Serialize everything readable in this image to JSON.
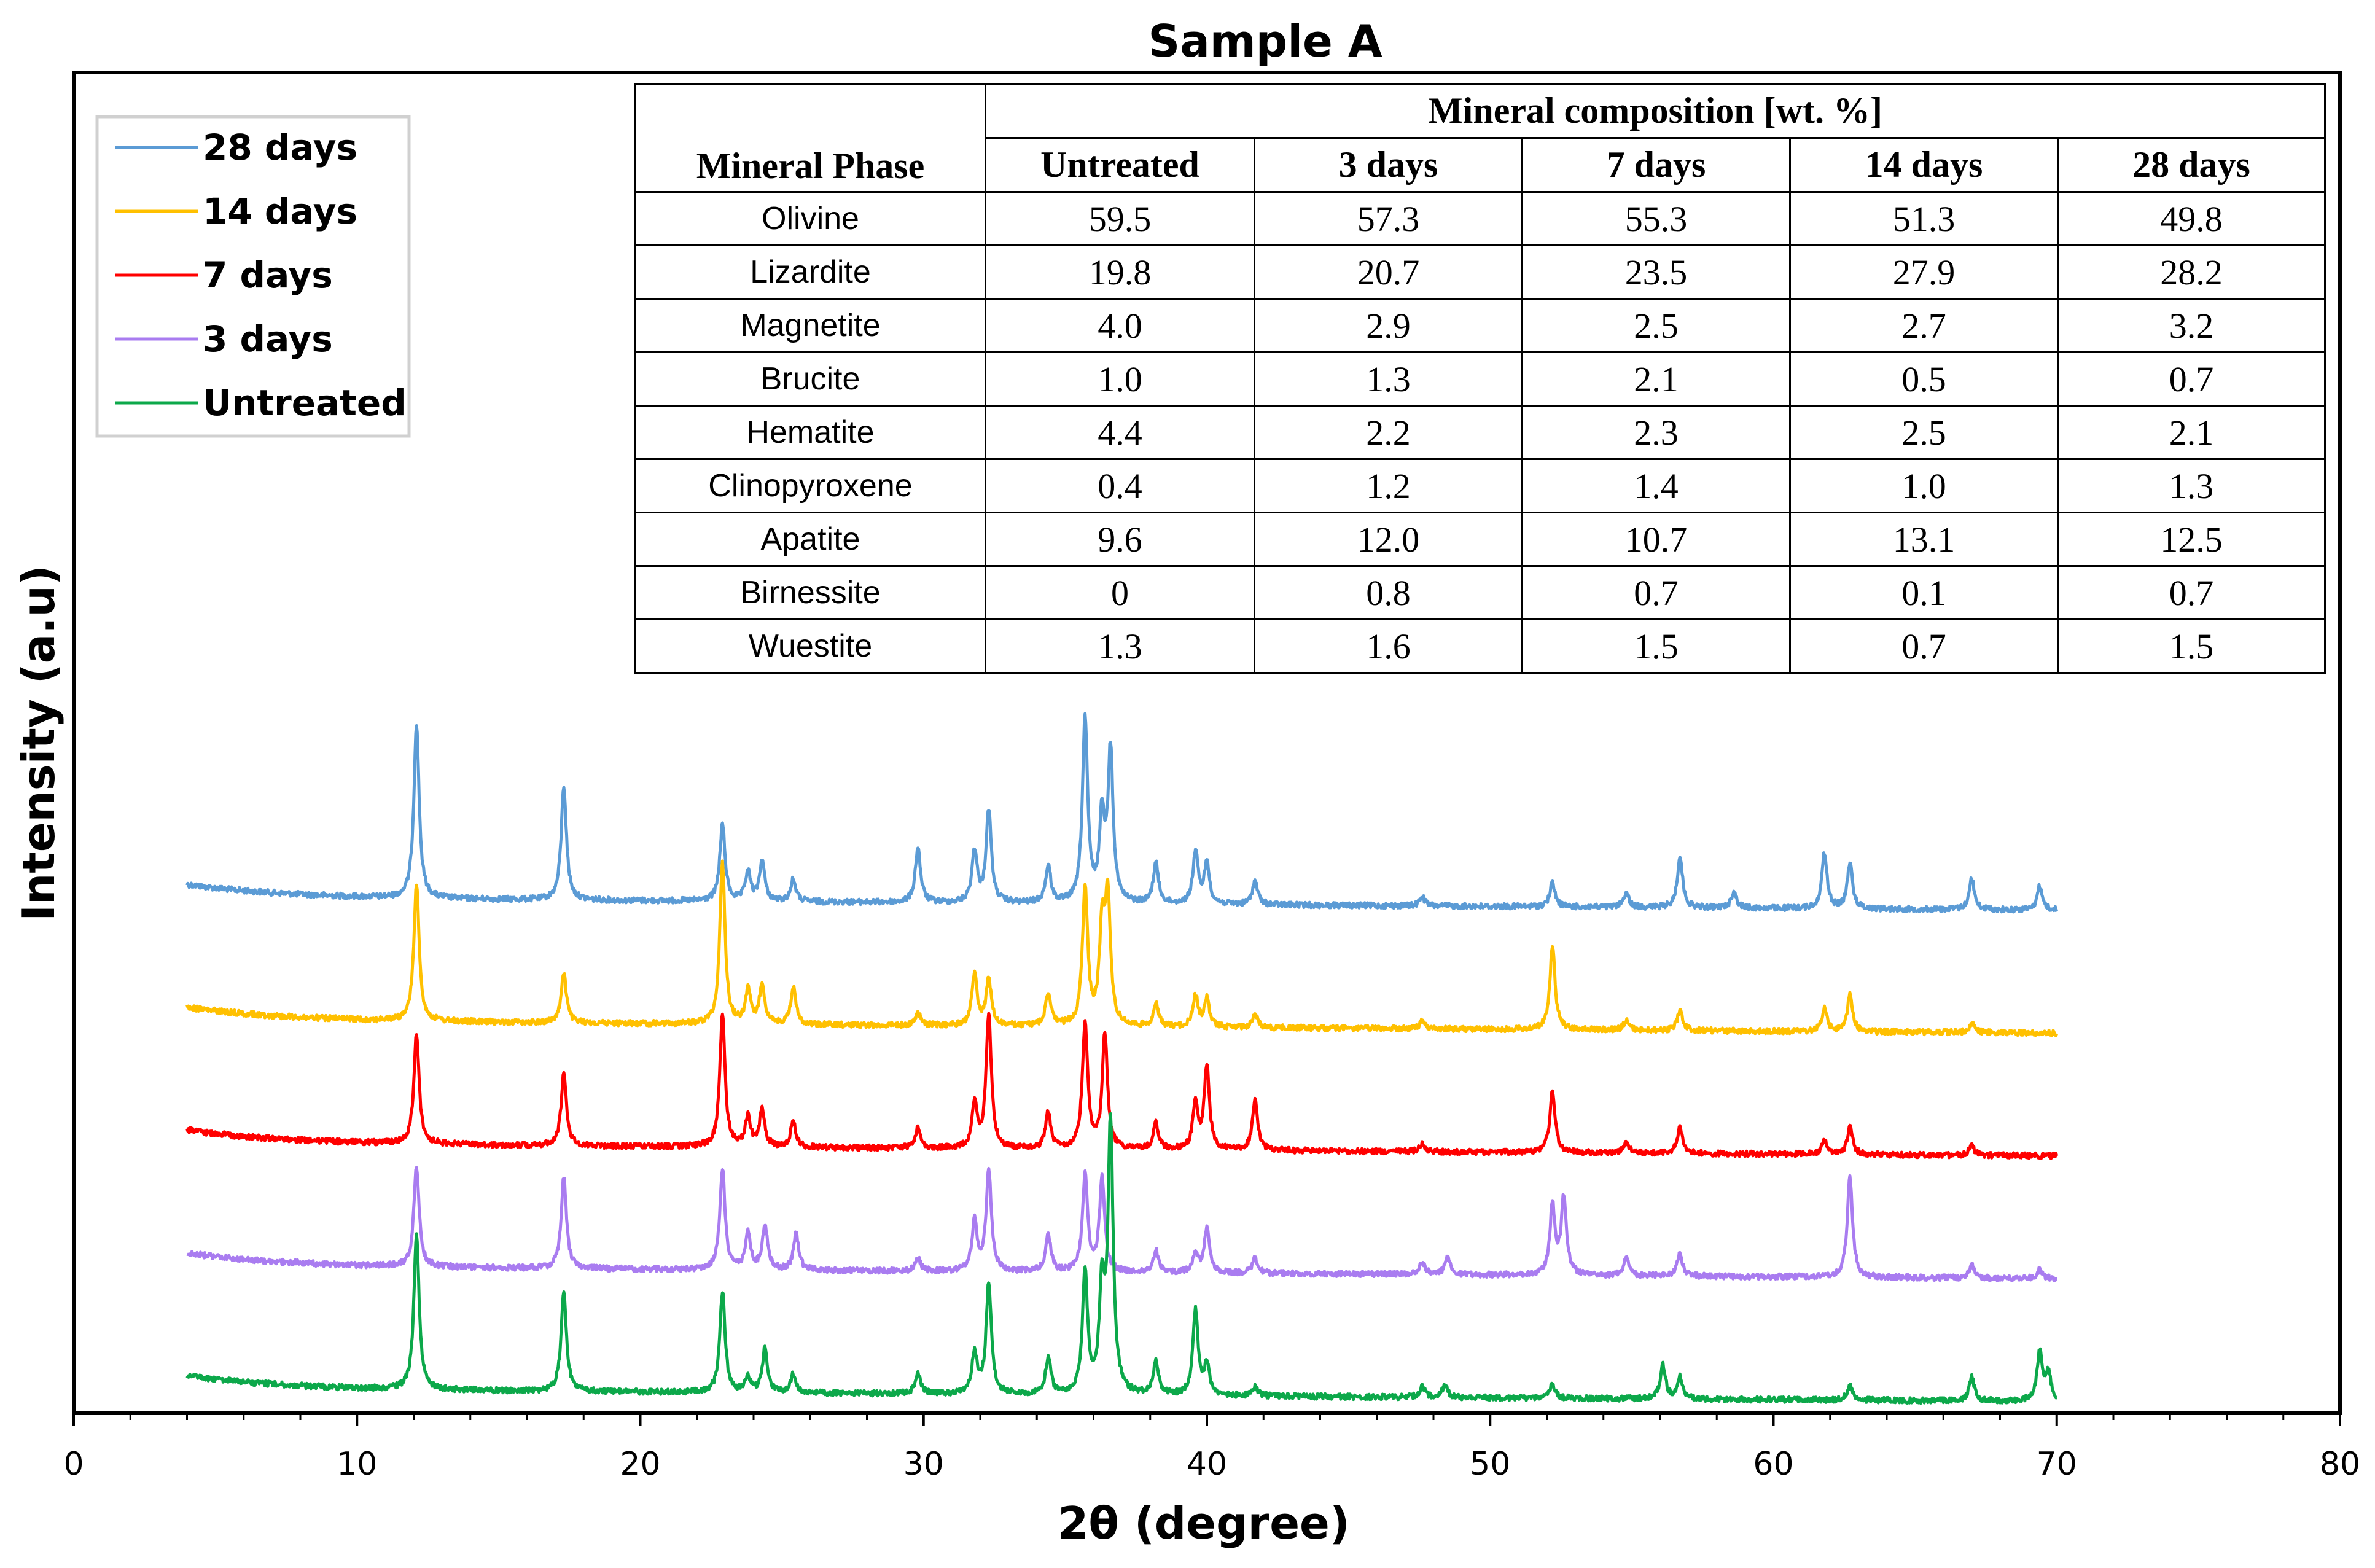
{
  "chart_data": {
    "type": "line",
    "title": "Sample A",
    "xlabel": "2θ (degree)",
    "ylabel": "Intensity (a.u)",
    "xlim": [
      0,
      80
    ],
    "xticks": [
      0,
      10,
      20,
      30,
      40,
      50,
      60,
      70,
      80
    ],
    "yticks_shown": false,
    "legend_position": "top-left",
    "series": [
      {
        "name": "28 days",
        "color": "#5B9BD5",
        "offset": 4,
        "x_range": [
          4,
          70
        ],
        "peaks": [
          [
            12.1,
            0.95
          ],
          [
            17.3,
            0.62
          ],
          [
            22.9,
            0.42
          ],
          [
            23.8,
            0.16
          ],
          [
            24.3,
            0.22
          ],
          [
            25.4,
            0.12
          ],
          [
            29.8,
            0.3
          ],
          [
            31.8,
            0.28
          ],
          [
            32.3,
            0.5
          ],
          [
            34.4,
            0.2
          ],
          [
            35.7,
            1.0
          ],
          [
            36.3,
            0.45
          ],
          [
            36.6,
            0.82
          ],
          [
            38.2,
            0.22
          ],
          [
            39.6,
            0.28
          ],
          [
            40.0,
            0.22
          ],
          [
            41.7,
            0.13
          ],
          [
            47.6,
            0.05
          ],
          [
            52.2,
            0.13
          ],
          [
            54.8,
            0.08
          ],
          [
            56.7,
            0.28
          ],
          [
            58.6,
            0.09
          ],
          [
            61.8,
            0.3
          ],
          [
            62.7,
            0.25
          ],
          [
            67.0,
            0.17
          ],
          [
            69.4,
            0.13
          ]
        ]
      },
      {
        "name": "14 days",
        "color": "#FFC000",
        "offset": 3,
        "x_range": [
          4,
          70
        ],
        "peaks": [
          [
            12.1,
            0.75
          ],
          [
            17.3,
            0.27
          ],
          [
            22.9,
            0.88
          ],
          [
            23.8,
            0.18
          ],
          [
            24.3,
            0.22
          ],
          [
            25.4,
            0.2
          ],
          [
            29.8,
            0.07
          ],
          [
            31.8,
            0.28
          ],
          [
            32.3,
            0.25
          ],
          [
            34.4,
            0.18
          ],
          [
            35.7,
            0.75
          ],
          [
            36.3,
            0.5
          ],
          [
            36.5,
            0.68
          ],
          [
            38.2,
            0.12
          ],
          [
            39.6,
            0.17
          ],
          [
            40.0,
            0.15
          ],
          [
            41.7,
            0.07
          ],
          [
            47.6,
            0.04
          ],
          [
            52.2,
            0.46
          ],
          [
            54.8,
            0.05
          ],
          [
            56.7,
            0.11
          ],
          [
            61.8,
            0.12
          ],
          [
            62.7,
            0.2
          ],
          [
            67.0,
            0.05
          ]
        ]
      },
      {
        "name": "7 days",
        "color": "#FF0000",
        "offset": 2,
        "x_range": [
          4,
          70
        ],
        "peaks": [
          [
            12.1,
            0.6
          ],
          [
            17.3,
            0.4
          ],
          [
            22.9,
            0.72
          ],
          [
            23.8,
            0.16
          ],
          [
            24.3,
            0.2
          ],
          [
            25.4,
            0.14
          ],
          [
            29.8,
            0.11
          ],
          [
            31.8,
            0.24
          ],
          [
            32.3,
            0.73
          ],
          [
            34.4,
            0.2
          ],
          [
            35.7,
            0.68
          ],
          [
            36.4,
            0.62
          ],
          [
            38.2,
            0.14
          ],
          [
            39.6,
            0.25
          ],
          [
            40.0,
            0.45
          ],
          [
            41.7,
            0.27
          ],
          [
            47.6,
            0.04
          ],
          [
            52.2,
            0.34
          ],
          [
            54.8,
            0.06
          ],
          [
            56.7,
            0.14
          ],
          [
            61.8,
            0.08
          ],
          [
            62.7,
            0.15
          ],
          [
            67.0,
            0.05
          ]
        ]
      },
      {
        "name": "3 days",
        "color": "#A97CF0",
        "offset": 1,
        "x_range": [
          4,
          70
        ],
        "peaks": [
          [
            12.1,
            0.55
          ],
          [
            17.3,
            0.5
          ],
          [
            22.9,
            0.55
          ],
          [
            23.8,
            0.2
          ],
          [
            24.4,
            0.24
          ],
          [
            25.5,
            0.2
          ],
          [
            29.8,
            0.07
          ],
          [
            31.8,
            0.27
          ],
          [
            32.3,
            0.55
          ],
          [
            34.4,
            0.2
          ],
          [
            35.7,
            0.52
          ],
          [
            36.3,
            0.5
          ],
          [
            38.2,
            0.12
          ],
          [
            39.6,
            0.11
          ],
          [
            40.0,
            0.24
          ],
          [
            41.7,
            0.08
          ],
          [
            47.6,
            0.07
          ],
          [
            48.5,
            0.1
          ],
          [
            52.2,
            0.37
          ],
          [
            52.6,
            0.42
          ],
          [
            54.8,
            0.1
          ],
          [
            56.7,
            0.12
          ],
          [
            62.7,
            0.55
          ],
          [
            67.0,
            0.07
          ],
          [
            69.4,
            0.05
          ]
        ]
      },
      {
        "name": "Untreated",
        "color": "#0CA84A",
        "offset": 0,
        "x_range": [
          4,
          70
        ],
        "peaks": [
          [
            12.1,
            0.85
          ],
          [
            17.3,
            0.55
          ],
          [
            22.9,
            0.55
          ],
          [
            23.8,
            0.08
          ],
          [
            24.4,
            0.24
          ],
          [
            25.4,
            0.1
          ],
          [
            29.8,
            0.12
          ],
          [
            31.8,
            0.22
          ],
          [
            32.3,
            0.6
          ],
          [
            34.4,
            0.2
          ],
          [
            35.7,
            0.65
          ],
          [
            36.3,
            0.55
          ],
          [
            36.6,
            1.45
          ],
          [
            38.2,
            0.18
          ],
          [
            39.6,
            0.46
          ],
          [
            40.0,
            0.17
          ],
          [
            41.7,
            0.05
          ],
          [
            47.6,
            0.06
          ],
          [
            48.4,
            0.07
          ],
          [
            52.2,
            0.08
          ],
          [
            56.1,
            0.18
          ],
          [
            56.7,
            0.12
          ],
          [
            62.7,
            0.08
          ],
          [
            67.0,
            0.13
          ],
          [
            69.4,
            0.27
          ],
          [
            69.7,
            0.15
          ]
        ]
      }
    ]
  },
  "legend": {
    "items": [
      {
        "label": "28 days",
        "color": "#5B9BD5"
      },
      {
        "label": "14 days",
        "color": "#FFC000"
      },
      {
        "label": "7 days",
        "color": "#FF0000"
      },
      {
        "label": "3 days",
        "color": "#A97CF0"
      },
      {
        "label": "Untreated",
        "color": "#0CA84A"
      }
    ]
  },
  "table": {
    "group_header": "Mineral composition [wt. %]",
    "phase_header": "Mineral Phase",
    "columns": [
      "Untreated",
      "3 days",
      "7 days",
      "14 days",
      "28 days"
    ],
    "rows": [
      {
        "phase": "Olivine",
        "values": [
          "59.5",
          "57.3",
          "55.3",
          "51.3",
          "49.8"
        ]
      },
      {
        "phase": "Lizardite",
        "values": [
          "19.8",
          "20.7",
          "23.5",
          "27.9",
          "28.2"
        ]
      },
      {
        "phase": "Magnetite",
        "values": [
          "4.0",
          "2.9",
          "2.5",
          "2.7",
          "3.2"
        ]
      },
      {
        "phase": "Brucite",
        "values": [
          "1.0",
          "1.3",
          "2.1",
          "0.5",
          "0.7"
        ]
      },
      {
        "phase": "Hematite",
        "values": [
          "4.4",
          "2.2",
          "2.3",
          "2.5",
          "2.1"
        ]
      },
      {
        "phase": "Clinopyroxene",
        "values": [
          "0.4",
          "1.2",
          "1.4",
          "1.0",
          "1.3"
        ]
      },
      {
        "phase": "Apatite",
        "values": [
          "9.6",
          "12.0",
          "10.7",
          "13.1",
          "12.5"
        ]
      },
      {
        "phase": "Birnessite",
        "values": [
          "0",
          "0.8",
          "0.7",
          "0.1",
          "0.7"
        ]
      },
      {
        "phase": "Wuestite",
        "values": [
          "1.3",
          "1.6",
          "1.5",
          "0.7",
          "1.5"
        ]
      }
    ]
  }
}
